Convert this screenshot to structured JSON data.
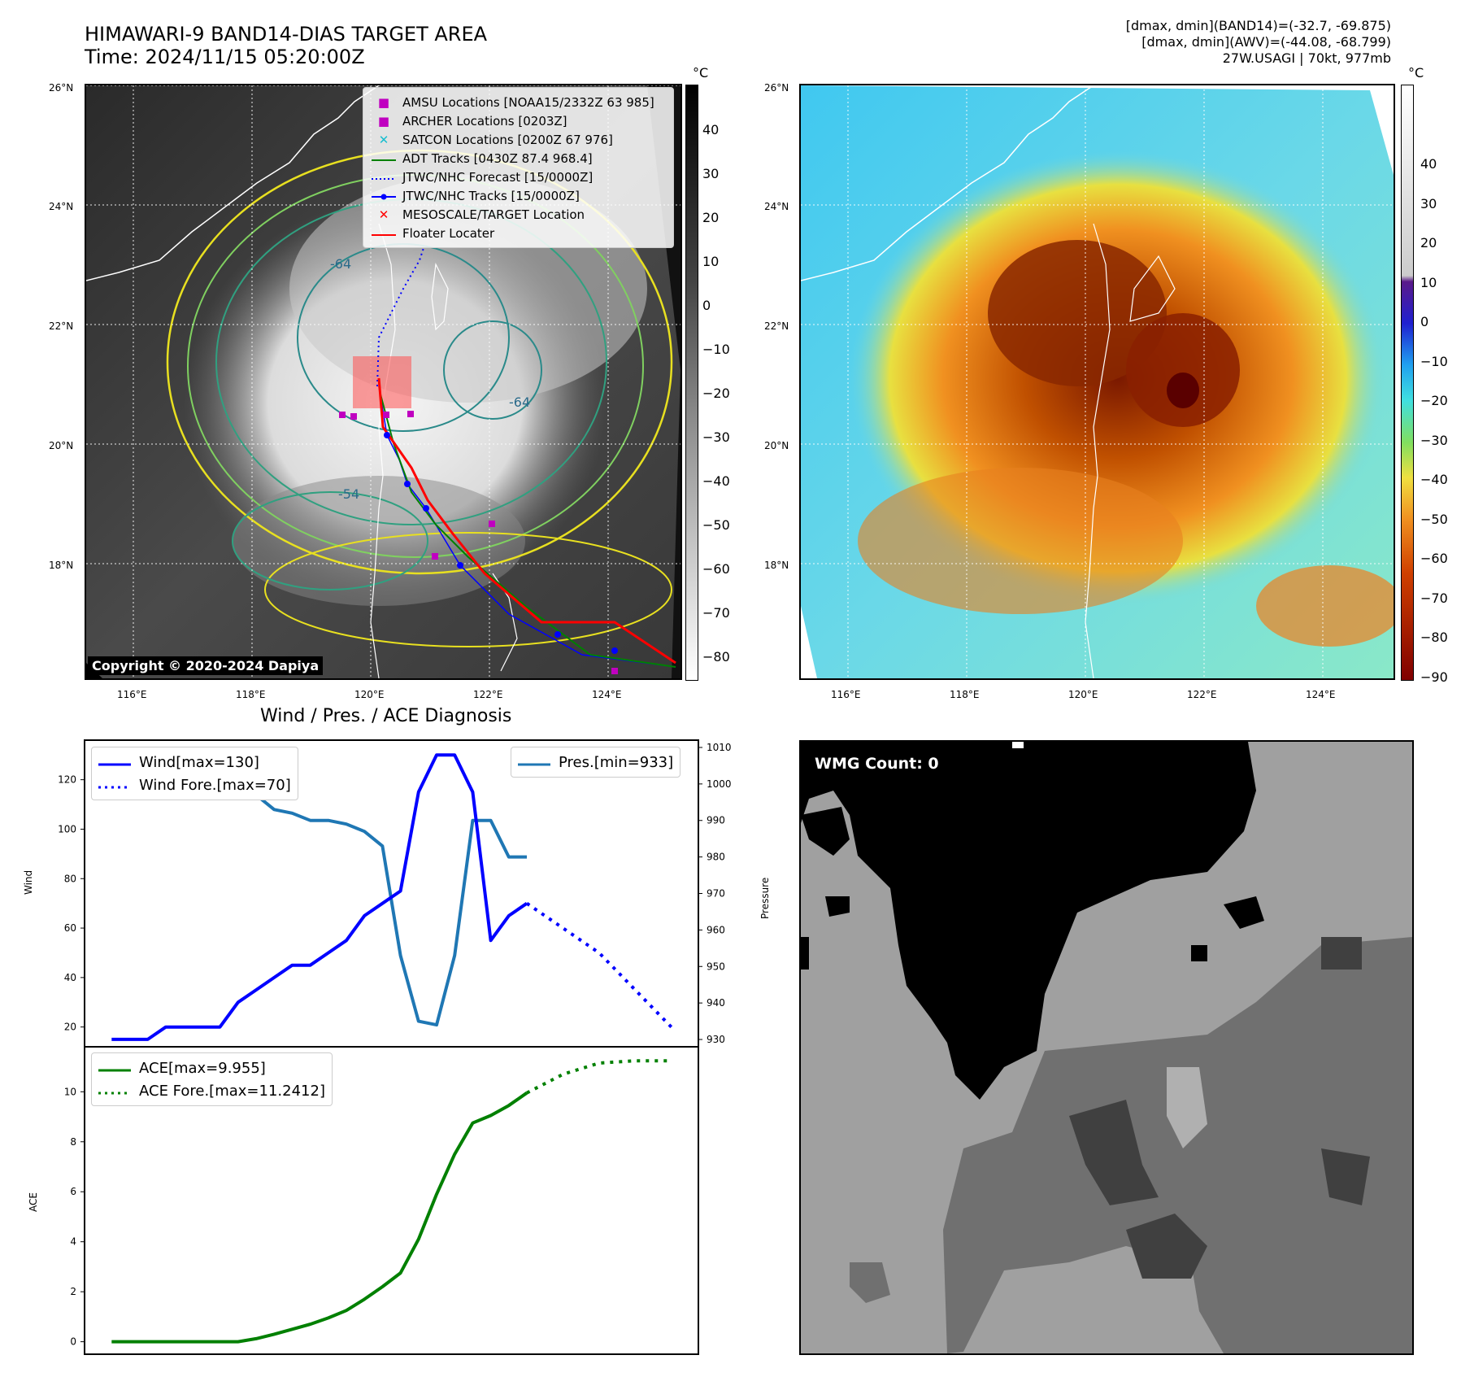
{
  "header": {
    "title_line1": "HIMAWARI-9 BAND14-DIAS TARGET AREA",
    "title_line2": "Time: 2024/11/15 05:20:00Z",
    "info_line1": "[dmax, dmin](BAND14)=(-32.7, -69.875)",
    "info_line2": "[dmax, dmin](AWV)=(-44.08, -68.799)",
    "info_line3": "27W.USAGI | 70kt, 977mb"
  },
  "map": {
    "lat_ticks": [
      "26°N",
      "24°N",
      "22°N",
      "20°N",
      "18°N"
    ],
    "lon_ticks": [
      "116°E",
      "118°E",
      "120°E",
      "122°E",
      "124°E"
    ],
    "copyright": "Copyright © 2020-2024 Dapiya",
    "contour_labels": [
      "-64",
      "-64",
      "-54"
    ],
    "legend": [
      {
        "label": "AMSU Locations [NOAA15/2332Z 63 985]",
        "symbol": "■",
        "color": "#c000c0"
      },
      {
        "label": "ARCHER Locations [0203Z]",
        "symbol": "■",
        "color": "#c000c0"
      },
      {
        "label": "SATCON Locations [0200Z 67 976]",
        "symbol": "✕",
        "color": "#17becf"
      },
      {
        "label": "ADT Tracks [0430Z 87.4 968.4]",
        "symbol": "line",
        "color": "#008000"
      },
      {
        "label": "JTWC/NHC Forecast [15/0000Z]",
        "symbol": "dotted",
        "color": "#0000ff"
      },
      {
        "label": "JTWC/NHC Tracks [15/0000Z]",
        "symbol": "line-dot",
        "color": "#0000ff"
      },
      {
        "label": "MESOSCALE/TARGET Location",
        "symbol": "✕",
        "color": "#ff0000"
      },
      {
        "label": "Floater Locater",
        "symbol": "line",
        "color": "#ff0000"
      }
    ]
  },
  "colorbar_gray": {
    "unit": "°C",
    "ticks": [
      "40",
      "30",
      "20",
      "10",
      "0",
      "−10",
      "−20",
      "−30",
      "−40",
      "−50",
      "−60",
      "−70",
      "−80"
    ]
  },
  "colorbar_color": {
    "unit": "°C",
    "ticks": [
      "40",
      "30",
      "20",
      "10",
      "0",
      "−10",
      "−20",
      "−30",
      "−40",
      "−50",
      "−60",
      "−70",
      "−80",
      "−90"
    ]
  },
  "diag": {
    "title": "Wind / Pres. / ACE Diagnosis",
    "wind_ylabel": "Wind",
    "pres_ylabel": "Pressure",
    "ace_ylabel": "ACE",
    "wind_ticks": [
      "120",
      "100",
      "80",
      "60",
      "40",
      "20"
    ],
    "pres_ticks": [
      "1010",
      "1000",
      "990",
      "980",
      "970",
      "960",
      "950",
      "940",
      "930"
    ],
    "ace_ticks": [
      "10",
      "8",
      "6",
      "4",
      "2",
      "0"
    ],
    "legend_wind": "Wind[max=130]",
    "legend_wind_fore": "Wind Fore.[max=70]",
    "legend_pres": "Pres.[min=933]",
    "legend_ace": "ACE[max=9.955]",
    "legend_ace_fore": "ACE Fore.[max=11.2412]"
  },
  "wmg": {
    "label": "WMG Count: 0"
  },
  "chart_data": [
    {
      "type": "line",
      "title": "Wind / Pres. / ACE Diagnosis",
      "ylabel": "Wind",
      "ylim": [
        12,
        136
      ],
      "series": [
        {
          "name": "Wind[max=130]",
          "color": "#0000ff",
          "style": "solid",
          "x": [
            0,
            1,
            2,
            3,
            4,
            5,
            6,
            7,
            8,
            9,
            10,
            11,
            12,
            13,
            14,
            15,
            16,
            17,
            18,
            19,
            20,
            21,
            22,
            23
          ],
          "values": [
            15,
            15,
            15,
            20,
            20,
            20,
            20,
            30,
            35,
            40,
            45,
            45,
            50,
            55,
            65,
            70,
            75,
            115,
            130,
            130,
            115,
            55,
            65,
            70
          ]
        },
        {
          "name": "Wind Fore.[max=70]",
          "color": "#0000ff",
          "style": "dotted",
          "x": [
            23,
            25,
            27,
            29,
            31
          ],
          "values": [
            70,
            60,
            50,
            35,
            20
          ]
        }
      ]
    },
    {
      "type": "line",
      "ylabel": "Pressure",
      "ylim": [
        928,
        1012
      ],
      "series": [
        {
          "name": "Pres.[min=933]",
          "color": "#1f77b4",
          "style": "solid",
          "x": [
            0,
            1,
            2,
            3,
            4,
            5,
            6,
            7,
            8,
            9,
            10,
            11,
            12,
            13,
            14,
            15,
            16,
            17,
            18,
            19,
            20,
            21,
            22,
            23
          ],
          "values": [
            1008,
            1008,
            1007,
            1006,
            1006,
            1005,
            1001,
            999,
            997,
            993,
            992,
            990,
            990,
            989,
            987,
            983,
            953,
            935,
            934,
            953,
            990,
            990,
            980,
            980
          ]
        }
      ]
    },
    {
      "type": "line",
      "ylabel": "ACE",
      "ylim": [
        -0.5,
        11.8
      ],
      "series": [
        {
          "name": "ACE[max=9.955]",
          "color": "#008000",
          "style": "solid",
          "x": [
            0,
            1,
            2,
            3,
            4,
            5,
            6,
            7,
            8,
            9,
            10,
            11,
            12,
            13,
            14,
            15,
            16,
            17,
            18,
            19,
            20,
            21,
            22,
            23
          ],
          "values": [
            0,
            0,
            0,
            0,
            0,
            0,
            0,
            0,
            0.12,
            0.3,
            0.5,
            0.7,
            0.95,
            1.25,
            1.7,
            2.2,
            2.75,
            4.1,
            5.9,
            7.5,
            8.75,
            9.05,
            9.45,
            9.955
          ]
        },
        {
          "name": "ACE Fore.[max=11.2412]",
          "color": "#008000",
          "style": "dotted",
          "x": [
            23,
            25,
            27,
            29,
            31
          ],
          "values": [
            9.955,
            10.7,
            11.15,
            11.24,
            11.24
          ]
        }
      ]
    }
  ]
}
